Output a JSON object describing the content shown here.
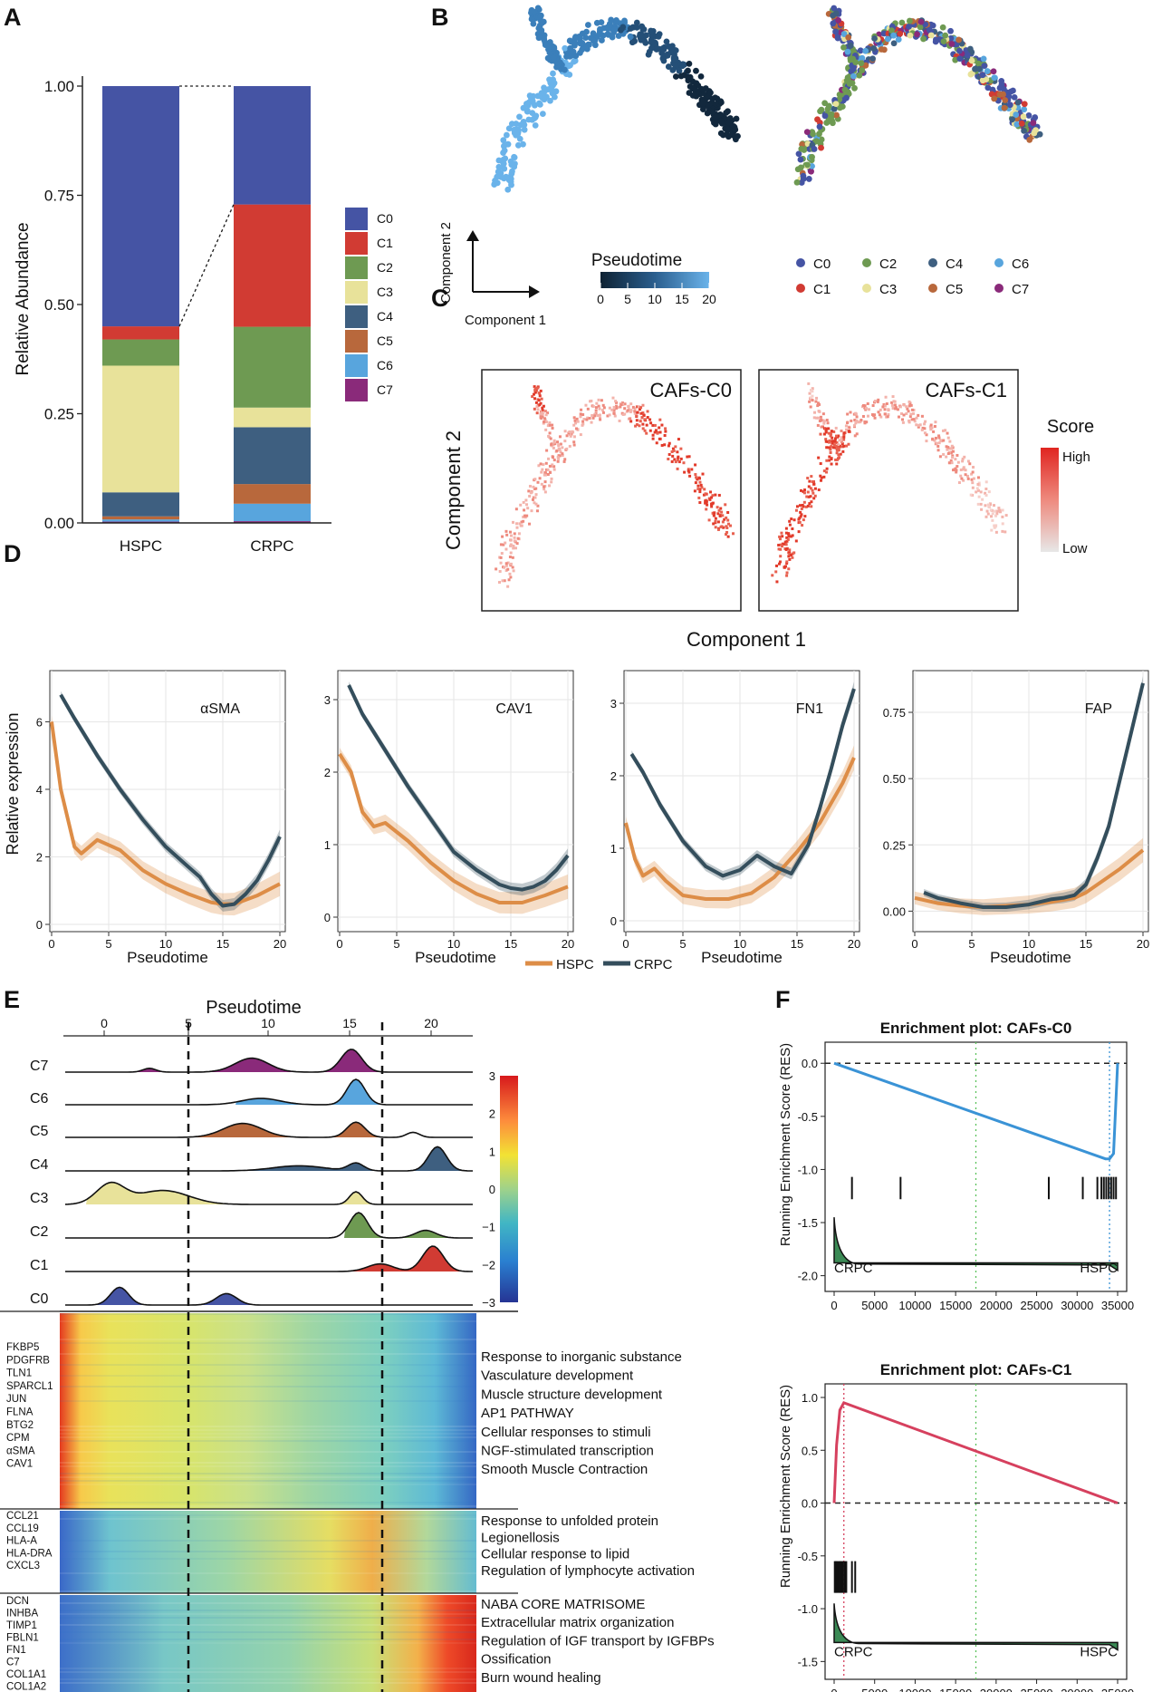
{
  "colors": {
    "C0": "#4554a4",
    "C1": "#d13b33",
    "C2": "#6e9a52",
    "C3": "#e8e29a",
    "C4": "#3e5f80",
    "C5": "#b8683c",
    "C6": "#58a5dd",
    "C7": "#8a2a7a",
    "hspc": "#dd8d47",
    "crpc": "#344e5c",
    "gsea_c0": "#3a93d6",
    "gsea_c1": "#d6405e"
  },
  "panel_labels": {
    "A": "A",
    "B": "B",
    "C": "C",
    "D": "D",
    "E": "E",
    "F": "F"
  },
  "chart_data": [
    {
      "id": "A",
      "type": "bar",
      "stacked": true,
      "categories": [
        "HSPC",
        "CRPC"
      ],
      "ylabel": "Relative Abundance",
      "yticks": [
        "0.00",
        "0.25",
        "0.50",
        "0.75",
        "1.00"
      ],
      "ylim": [
        0,
        1
      ],
      "legend": [
        "C0",
        "C1",
        "C2",
        "C3",
        "C4",
        "C5",
        "C6",
        "C7"
      ],
      "series": [
        {
          "name": "C7",
          "values": [
            0.003,
            0.004
          ]
        },
        {
          "name": "C6",
          "values": [
            0.005,
            0.04
          ]
        },
        {
          "name": "C5",
          "values": [
            0.007,
            0.045
          ]
        },
        {
          "name": "C4",
          "values": [
            0.055,
            0.13
          ]
        },
        {
          "name": "C3",
          "values": [
            0.29,
            0.045
          ]
        },
        {
          "name": "C2",
          "values": [
            0.06,
            0.185
          ]
        },
        {
          "name": "C1",
          "values": [
            0.03,
            0.28
          ]
        },
        {
          "name": "C0",
          "values": [
            0.55,
            0.271
          ]
        }
      ]
    },
    {
      "id": "B",
      "type": "scatter",
      "xlabel": "Component 1",
      "ylabel": "Component 2",
      "colorbar_title": "Pseudotime",
      "colorbar_ticks": [
        "0",
        "5",
        "10",
        "15",
        "20"
      ],
      "legend": [
        "C0",
        "C2",
        "C4",
        "C6",
        "C1",
        "C3",
        "C5",
        "C7"
      ]
    },
    {
      "id": "C",
      "type": "scatter",
      "facets": [
        "CAFs-C0",
        "CAFs-C1"
      ],
      "xlabel": "Component 1",
      "ylabel": "Component 2",
      "colorbar_title": "Score",
      "colorbar_labels": [
        "High",
        "Low"
      ]
    },
    {
      "id": "D",
      "type": "line",
      "xlabel": "Pseudotime",
      "ylabel": "Relative expression",
      "xticks": [
        "0",
        "5",
        "10",
        "15",
        "20"
      ],
      "legend": [
        "HSPC",
        "CRPC"
      ],
      "facets": [
        {
          "title": "αSMA",
          "ylim": [
            0,
            7.3
          ],
          "yticks": [
            "0",
            "2",
            "4",
            "6"
          ],
          "ytick_values": [
            0,
            2,
            4,
            6
          ],
          "x": [
            0,
            0.8,
            2,
            2.6,
            4,
            6,
            8,
            10,
            12,
            14,
            15,
            16,
            18,
            20
          ],
          "hspc": [
            6.0,
            4.0,
            2.3,
            2.1,
            2.5,
            2.2,
            1.6,
            1.2,
            0.9,
            0.65,
            0.6,
            0.6,
            0.85,
            1.2
          ],
          "crpc_x": [
            0.8,
            2,
            4,
            6,
            8,
            10,
            12,
            13,
            14,
            15,
            16,
            17,
            18,
            19,
            20
          ],
          "crpc": [
            6.8,
            6.1,
            5.0,
            4.0,
            3.1,
            2.3,
            1.7,
            1.4,
            0.9,
            0.55,
            0.6,
            0.9,
            1.3,
            1.9,
            2.6
          ]
        },
        {
          "title": "CAV1",
          "ylim": [
            -0.1,
            3.3
          ],
          "yticks": [
            "0",
            "1",
            "2",
            "3"
          ],
          "ytick_values": [
            0,
            1,
            2,
            3
          ],
          "x": [
            0,
            1,
            2,
            3,
            4,
            6,
            8,
            10,
            12,
            14,
            16,
            18,
            20
          ],
          "hspc": [
            2.25,
            2.0,
            1.45,
            1.25,
            1.3,
            1.05,
            0.75,
            0.5,
            0.32,
            0.2,
            0.2,
            0.3,
            0.42
          ],
          "crpc_x": [
            0.8,
            2,
            4,
            6,
            8,
            10,
            12,
            14,
            15,
            16,
            17,
            18,
            19,
            20
          ],
          "crpc": [
            3.2,
            2.8,
            2.3,
            1.8,
            1.35,
            0.9,
            0.65,
            0.45,
            0.4,
            0.38,
            0.42,
            0.5,
            0.65,
            0.85
          ]
        },
        {
          "title": "FN1",
          "ylim": [
            -0.05,
            3.35
          ],
          "yticks": [
            "0",
            "1",
            "2",
            "3"
          ],
          "ytick_values": [
            0,
            1,
            2,
            3
          ],
          "x": [
            0,
            0.8,
            1.5,
            2.5,
            3.5,
            5,
            7,
            9,
            11,
            13,
            15,
            17,
            19,
            20
          ],
          "hspc": [
            1.35,
            0.85,
            0.62,
            0.72,
            0.55,
            0.35,
            0.3,
            0.3,
            0.38,
            0.6,
            0.95,
            1.35,
            1.9,
            2.25
          ],
          "crpc_x": [
            0.5,
            1.5,
            3,
            5,
            7,
            8.5,
            10,
            11.5,
            13,
            14.5,
            16,
            17,
            18,
            19,
            20
          ],
          "crpc": [
            2.3,
            2.05,
            1.6,
            1.1,
            0.75,
            0.62,
            0.7,
            0.9,
            0.75,
            0.65,
            1.05,
            1.55,
            2.1,
            2.7,
            3.2
          ]
        },
        {
          "title": "FAP",
          "ylim": [
            -0.05,
            0.88
          ],
          "yticks": [
            "0.00",
            "0.25",
            "0.50",
            "0.75"
          ],
          "ytick_values": [
            0,
            0.25,
            0.5,
            0.75
          ],
          "x": [
            0,
            2,
            4,
            6,
            8,
            10,
            12,
            14,
            15,
            16,
            18,
            20
          ],
          "hspc": [
            0.05,
            0.03,
            0.02,
            0.015,
            0.02,
            0.025,
            0.035,
            0.05,
            0.07,
            0.1,
            0.16,
            0.23
          ],
          "crpc_x": [
            0.8,
            2,
            4,
            6,
            8,
            10,
            12,
            13,
            14,
            15,
            16,
            17,
            18,
            19,
            20
          ],
          "crpc": [
            0.07,
            0.05,
            0.03,
            0.015,
            0.015,
            0.025,
            0.045,
            0.05,
            0.06,
            0.1,
            0.2,
            0.32,
            0.5,
            0.68,
            0.86
          ]
        }
      ]
    },
    {
      "id": "E",
      "type": "heatmap",
      "title": "Pseudotime",
      "xticks": [
        "0",
        "5",
        "10",
        "15",
        "20"
      ],
      "ridge_rows": [
        "C7",
        "C6",
        "C5",
        "C4",
        "C3",
        "C2",
        "C1",
        "C0"
      ],
      "colorbar_ticks": [
        "3",
        "2",
        "1",
        "0",
        "−1",
        "−2",
        "−3"
      ],
      "gene_blocks": [
        {
          "genes": [
            "FKBP5",
            "PDGFRB",
            "TLN1",
            "SPARCL1",
            "JUN",
            "FLNA",
            "BTG2",
            "CPM",
            "αSMA",
            "CAV1"
          ],
          "terms": [
            "Response to inorganic substance",
            "Vasculature development",
            "Muscle structure development",
            "AP1 PATHWAY",
            "Cellular responses to stimuli",
            "NGF-stimulated transcription",
            "Smooth Muscle Contraction"
          ]
        },
        {
          "genes": [
            "CCL21",
            "CCL19",
            "HLA-A",
            "HLA-DRA",
            "CXCL3"
          ],
          "terms": [
            "Response to unfolded protein",
            "Legionellosis",
            "Cellular response to lipid",
            "Regulation of lymphocyte activation"
          ]
        },
        {
          "genes": [
            "DCN",
            "INHBA",
            "TIMP1",
            "FBLN1",
            "FN1",
            "C7",
            "COL1A1",
            "COL1A2"
          ],
          "terms": [
            "NABA CORE MATRISOME",
            "Extracellular matrix organization",
            "Regulation of IGF transport by IGFBPs",
            "Ossification",
            "Burn wound healing"
          ]
        }
      ]
    },
    {
      "id": "F",
      "type": "line",
      "ylabel": "Running Enrichment Score (RES)",
      "xticks": [
        "0",
        "5000",
        "10000",
        "15000",
        "20000",
        "25000",
        "30000",
        "35000"
      ],
      "plots": [
        {
          "title": "Enrichment plot: CAFs-C0",
          "ylim": [
            -2.08,
            0.13
          ],
          "yticks": [
            "0.0",
            "-0.5",
            "-1.0",
            "-1.5",
            "-2.0"
          ],
          "ytick_values": [
            0,
            -0.5,
            -1,
            -1.5,
            -2
          ],
          "x": [
            0,
            33500,
            34000,
            34500,
            35000
          ],
          "y": [
            0,
            -0.9,
            -0.9,
            -0.85,
            0
          ],
          "hits": [
            2200,
            8200,
            26500,
            30700,
            32500,
            33000,
            33300,
            33600,
            33900,
            34200,
            34500,
            34800
          ],
          "left_label": "CRPC",
          "right_label": "HSPC"
        },
        {
          "title": "Enrichment plot: CAFs-C1",
          "ylim": [
            -1.6,
            1.06
          ],
          "yticks": [
            "1.0",
            "0.5",
            "0.0",
            "-0.5",
            "-1.0",
            "-1.5"
          ],
          "ytick_values": [
            1,
            0.5,
            0,
            -0.5,
            -1,
            -1.5
          ],
          "x": [
            0,
            300,
            700,
            1200,
            35000
          ],
          "y": [
            0,
            0.55,
            0.88,
            0.95,
            0
          ],
          "hits": [
            80,
            200,
            350,
            500,
            650,
            800,
            950,
            1100,
            1300,
            1500,
            2200,
            2600
          ],
          "left_label": "CRPC",
          "right_label": "HSPC"
        }
      ]
    }
  ]
}
